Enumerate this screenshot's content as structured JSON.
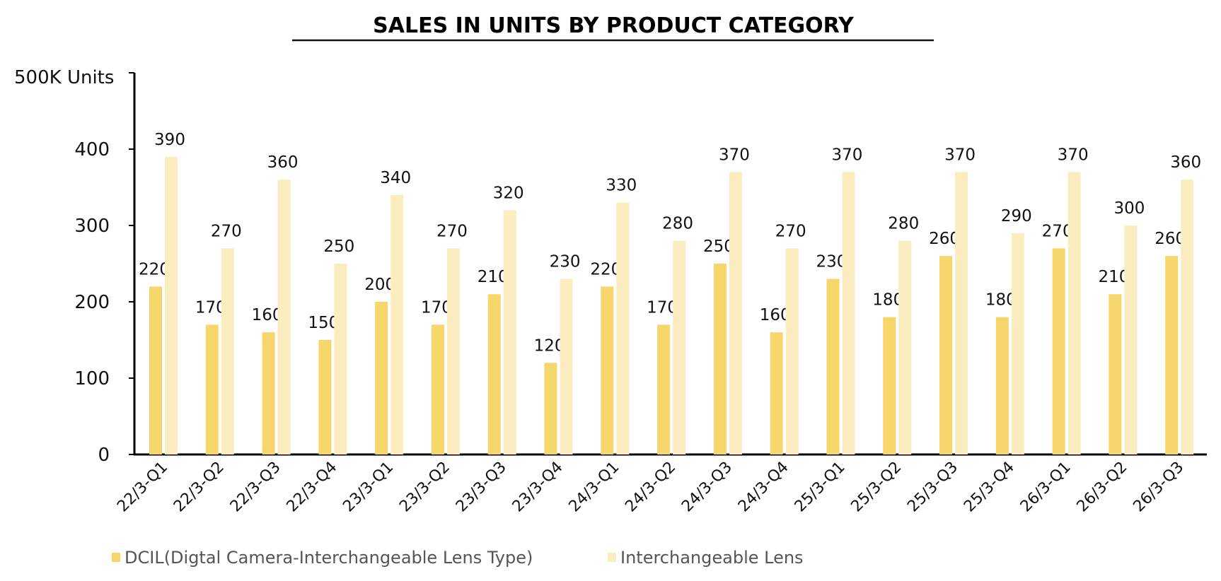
{
  "chart_data": {
    "type": "bar",
    "title": "SALES IN UNITS BY PRODUCT CATEGORY",
    "ylabel": "500K Units",
    "xlabel": "",
    "ylim": [
      0,
      500
    ],
    "yticks": [
      0,
      100,
      200,
      300,
      400
    ],
    "grid": false,
    "legend_position": "bottom-left",
    "categories": [
      "22/3-Q1",
      "22/3-Q2",
      "22/3-Q3",
      "22/3-Q4",
      "23/3-Q1",
      "23/3-Q2",
      "23/3-Q3",
      "23/3-Q4",
      "24/3-Q1",
      "24/3-Q2",
      "24/3-Q3",
      "24/3-Q4",
      "25/3-Q1",
      "25/3-Q2",
      "25/3-Q3",
      "25/3-Q4",
      "26/3-Q1",
      "26/3-Q2",
      "26/3-Q3"
    ],
    "series": [
      {
        "name": "DCIL(Digtal Camera-Interchangeable Lens Type)",
        "color": "#F7D66B",
        "values": [
          220,
          170,
          160,
          150,
          200,
          170,
          210,
          120,
          220,
          170,
          250,
          160,
          230,
          180,
          260,
          180,
          270,
          210,
          260
        ]
      },
      {
        "name": "Interchangeable Lens",
        "color": "#FBEDBF",
        "values": [
          390,
          270,
          360,
          250,
          340,
          270,
          320,
          230,
          330,
          280,
          370,
          270,
          370,
          280,
          370,
          290,
          370,
          300,
          360
        ]
      }
    ]
  }
}
